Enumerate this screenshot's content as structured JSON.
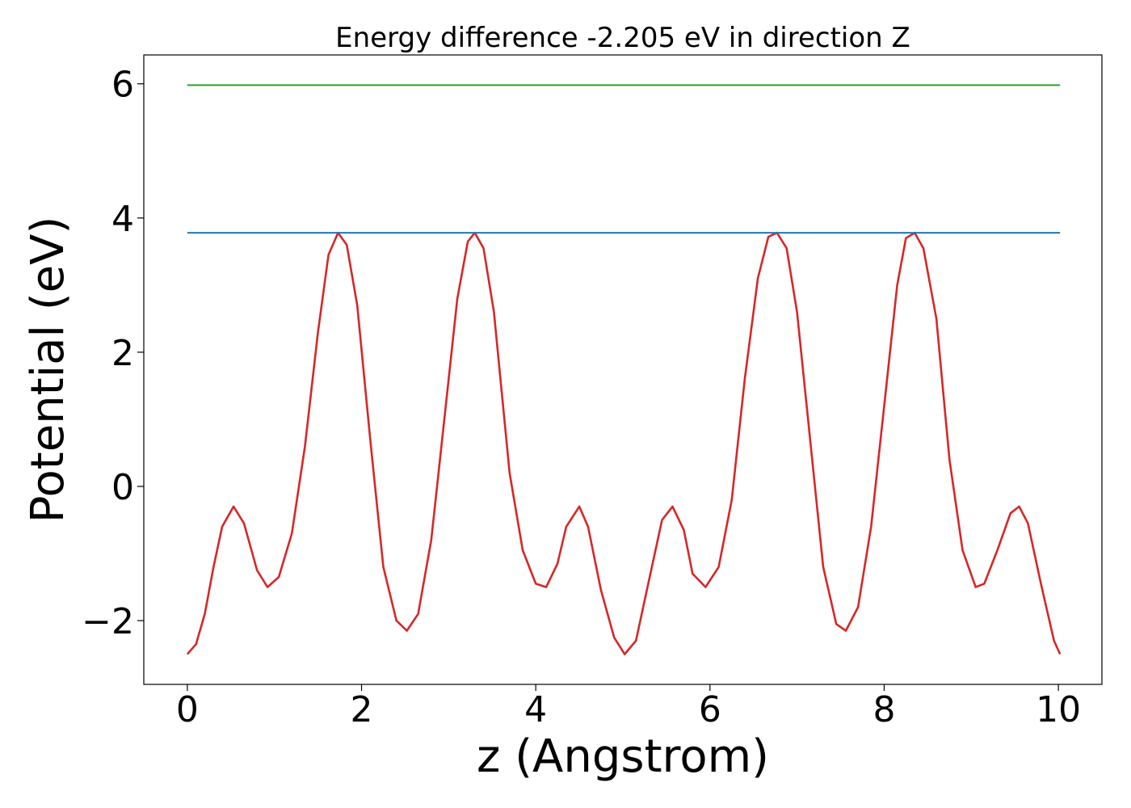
{
  "chart_data": {
    "type": "line",
    "title": "Energy difference -2.205 eV in direction Z",
    "xlabel": "z (Angstrom)",
    "ylabel": "Potential (eV)",
    "xlim": [
      -0.5,
      10.5
    ],
    "ylim": [
      -2.95,
      6.43
    ],
    "xticks": [
      0,
      2,
      4,
      6,
      8,
      10
    ],
    "yticks": [
      -2,
      0,
      2,
      4,
      6
    ],
    "xtick_labels": [
      "0",
      "2",
      "4",
      "6",
      "8",
      "10"
    ],
    "ytick_labels": [
      "−2",
      "0",
      "2",
      "4",
      "6"
    ],
    "grid": false,
    "series": [
      {
        "color": "#d62728",
        "x": [
          0.0,
          0.1,
          0.2,
          0.3,
          0.4,
          0.53,
          0.65,
          0.8,
          0.92,
          1.05,
          1.2,
          1.35,
          1.5,
          1.62,
          1.73,
          1.83,
          1.95,
          2.1,
          2.25,
          2.4,
          2.52,
          2.65,
          2.8,
          2.95,
          3.1,
          3.22,
          3.3,
          3.4,
          3.52,
          3.7,
          3.85,
          4.0,
          4.12,
          4.25,
          4.35,
          4.5,
          4.6,
          4.75,
          4.9,
          5.02,
          5.15,
          5.3,
          5.45,
          5.57,
          5.7,
          5.8,
          5.95,
          6.1,
          6.25,
          6.4,
          6.55,
          6.67,
          6.77,
          6.88,
          7.0,
          7.15,
          7.3,
          7.45,
          7.56,
          7.7,
          7.85,
          8.0,
          8.15,
          8.25,
          8.35,
          8.45,
          8.6,
          8.75,
          8.9,
          9.05,
          9.15,
          9.3,
          9.45,
          9.55,
          9.65,
          9.8,
          9.95,
          10.02
        ],
        "y": [
          -2.5,
          -2.35,
          -1.9,
          -1.2,
          -0.6,
          -0.3,
          -0.55,
          -1.25,
          -1.5,
          -1.35,
          -0.7,
          0.6,
          2.3,
          3.45,
          3.78,
          3.6,
          2.7,
          0.7,
          -1.2,
          -2.0,
          -2.15,
          -1.9,
          -0.8,
          1.0,
          2.8,
          3.65,
          3.78,
          3.55,
          2.6,
          0.2,
          -0.95,
          -1.45,
          -1.5,
          -1.15,
          -0.6,
          -0.3,
          -0.6,
          -1.55,
          -2.25,
          -2.5,
          -2.3,
          -1.4,
          -0.5,
          -0.3,
          -0.65,
          -1.3,
          -1.5,
          -1.2,
          -0.2,
          1.6,
          3.1,
          3.72,
          3.78,
          3.55,
          2.6,
          0.7,
          -1.2,
          -2.05,
          -2.15,
          -1.8,
          -0.6,
          1.2,
          3.0,
          3.7,
          3.78,
          3.55,
          2.5,
          0.4,
          -0.95,
          -1.5,
          -1.45,
          -0.95,
          -0.4,
          -0.3,
          -0.55,
          -1.45,
          -2.3,
          -2.5
        ]
      },
      {
        "color": "#1f77b4",
        "x": [
          0.0,
          10.02
        ],
        "y": [
          3.78,
          3.78
        ]
      },
      {
        "color": "#2ca02c",
        "x": [
          0.0,
          10.02
        ],
        "y": [
          5.98,
          5.98
        ]
      }
    ]
  }
}
